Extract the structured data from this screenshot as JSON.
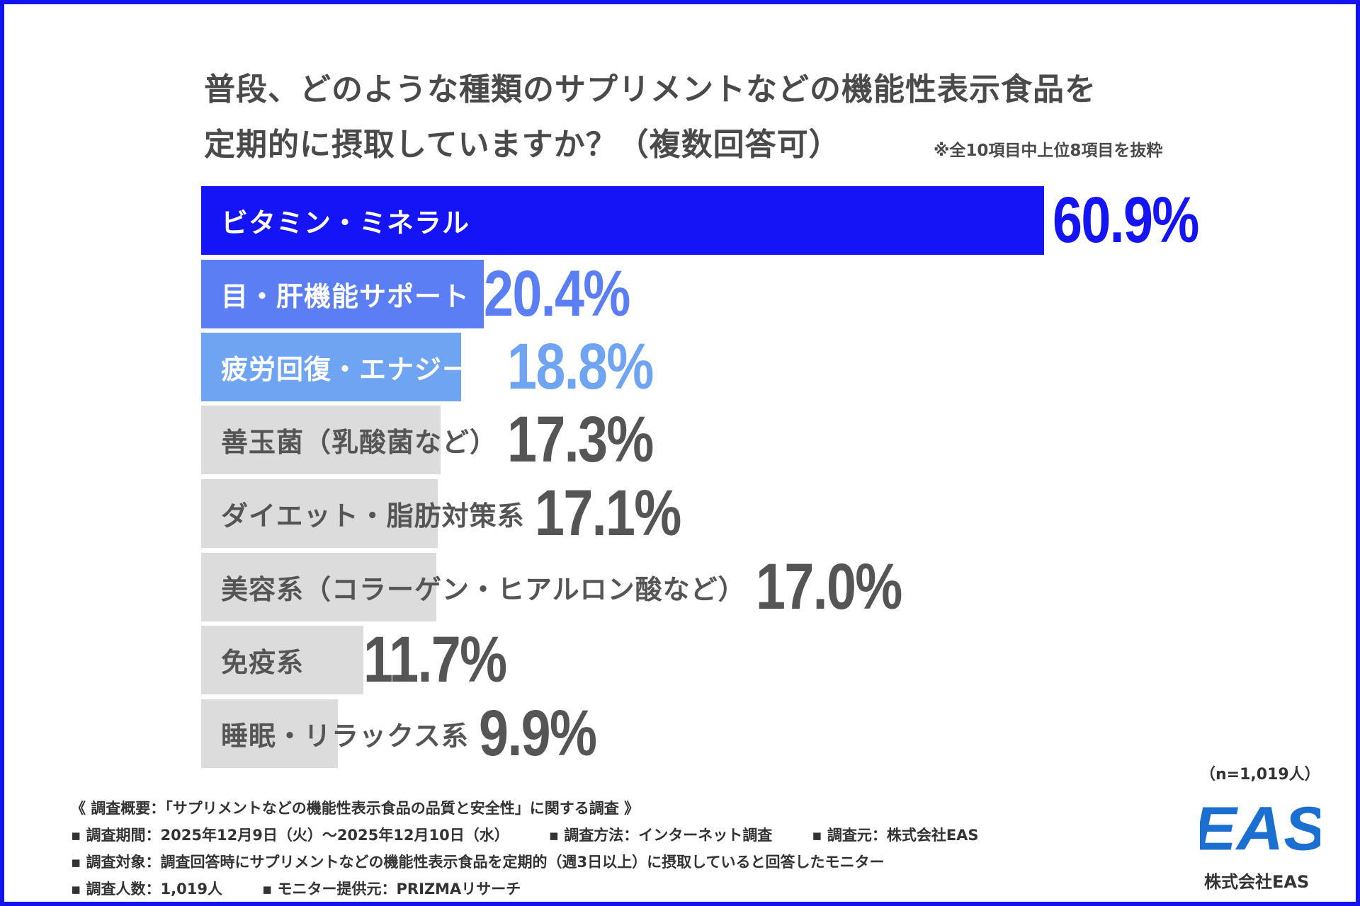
{
  "chart_data": {
    "type": "bar",
    "orientation": "horizontal",
    "title": "普段、どのような種類のサプリメントなどの機能性表示食品を定期的に摂取していますか？（複数回答可）",
    "title_lines": [
      "普段、どのような種類のサプリメントなどの機能性表示食品を",
      "定期的に摂取していますか？（複数回答可）"
    ],
    "note": "※全10項目中上位8項目を抜粋",
    "categories": [
      "ビタミン・ミネラル",
      "目・肝機能サポート",
      "疲労回復・エナジー系",
      "善玉菌（乳酸菌など）",
      "ダイエット・脂肪対策系",
      "美容系（コラーゲン・ヒアルロン酸など）",
      "免疫系",
      "睡眠・リラックス系"
    ],
    "values": [
      60.9,
      20.4,
      18.8,
      17.3,
      17.1,
      17.0,
      11.7,
      9.9
    ],
    "value_labels": [
      "60.9%",
      "20.4%",
      "18.8%",
      "17.3%",
      "17.1%",
      "17.0%",
      "11.7%",
      "9.9%"
    ],
    "unit": "%",
    "bar_colors": [
      "#1414f5",
      "#5b7ef5",
      "#6fa4f2",
      "#dcdcdc",
      "#dcdcdc",
      "#dcdcdc",
      "#dcdcdc",
      "#dcdcdc"
    ],
    "label_colors": [
      "#ffffff",
      "#ffffff",
      "#ffffff",
      "#555555",
      "#555555",
      "#555555",
      "#555555",
      "#555555"
    ],
    "value_colors": [
      "#1414f5",
      "#5b7ef5",
      "#6fa4f2",
      "#555555",
      "#555555",
      "#555555",
      "#555555",
      "#555555"
    ],
    "sample": "（n=1,019人）",
    "grid": false
  },
  "footer": {
    "heading": "《 調査概要：「サプリメントなどの機能性表示食品の品質と安全性」に関する調査 》",
    "line1": [
      "▪ 調査期間：2025年12月9日（火）～2025年12月10日（水）",
      "▪ 調査方法：インターネット調査",
      "▪ 調査元：株式会社EAS"
    ],
    "line2": "▪ 調査対象：調査回答時にサプリメントなどの機能性表示食品を定期的（週3日以上）に摂取していると回答したモニター",
    "line3": [
      "▪ 調査人数：1,019人",
      "▪ モニター提供元：PRIZMAリサーチ"
    ]
  },
  "logo": {
    "mark": "EAS",
    "name": "株式会社EAS",
    "color": "#1a6fd0"
  }
}
